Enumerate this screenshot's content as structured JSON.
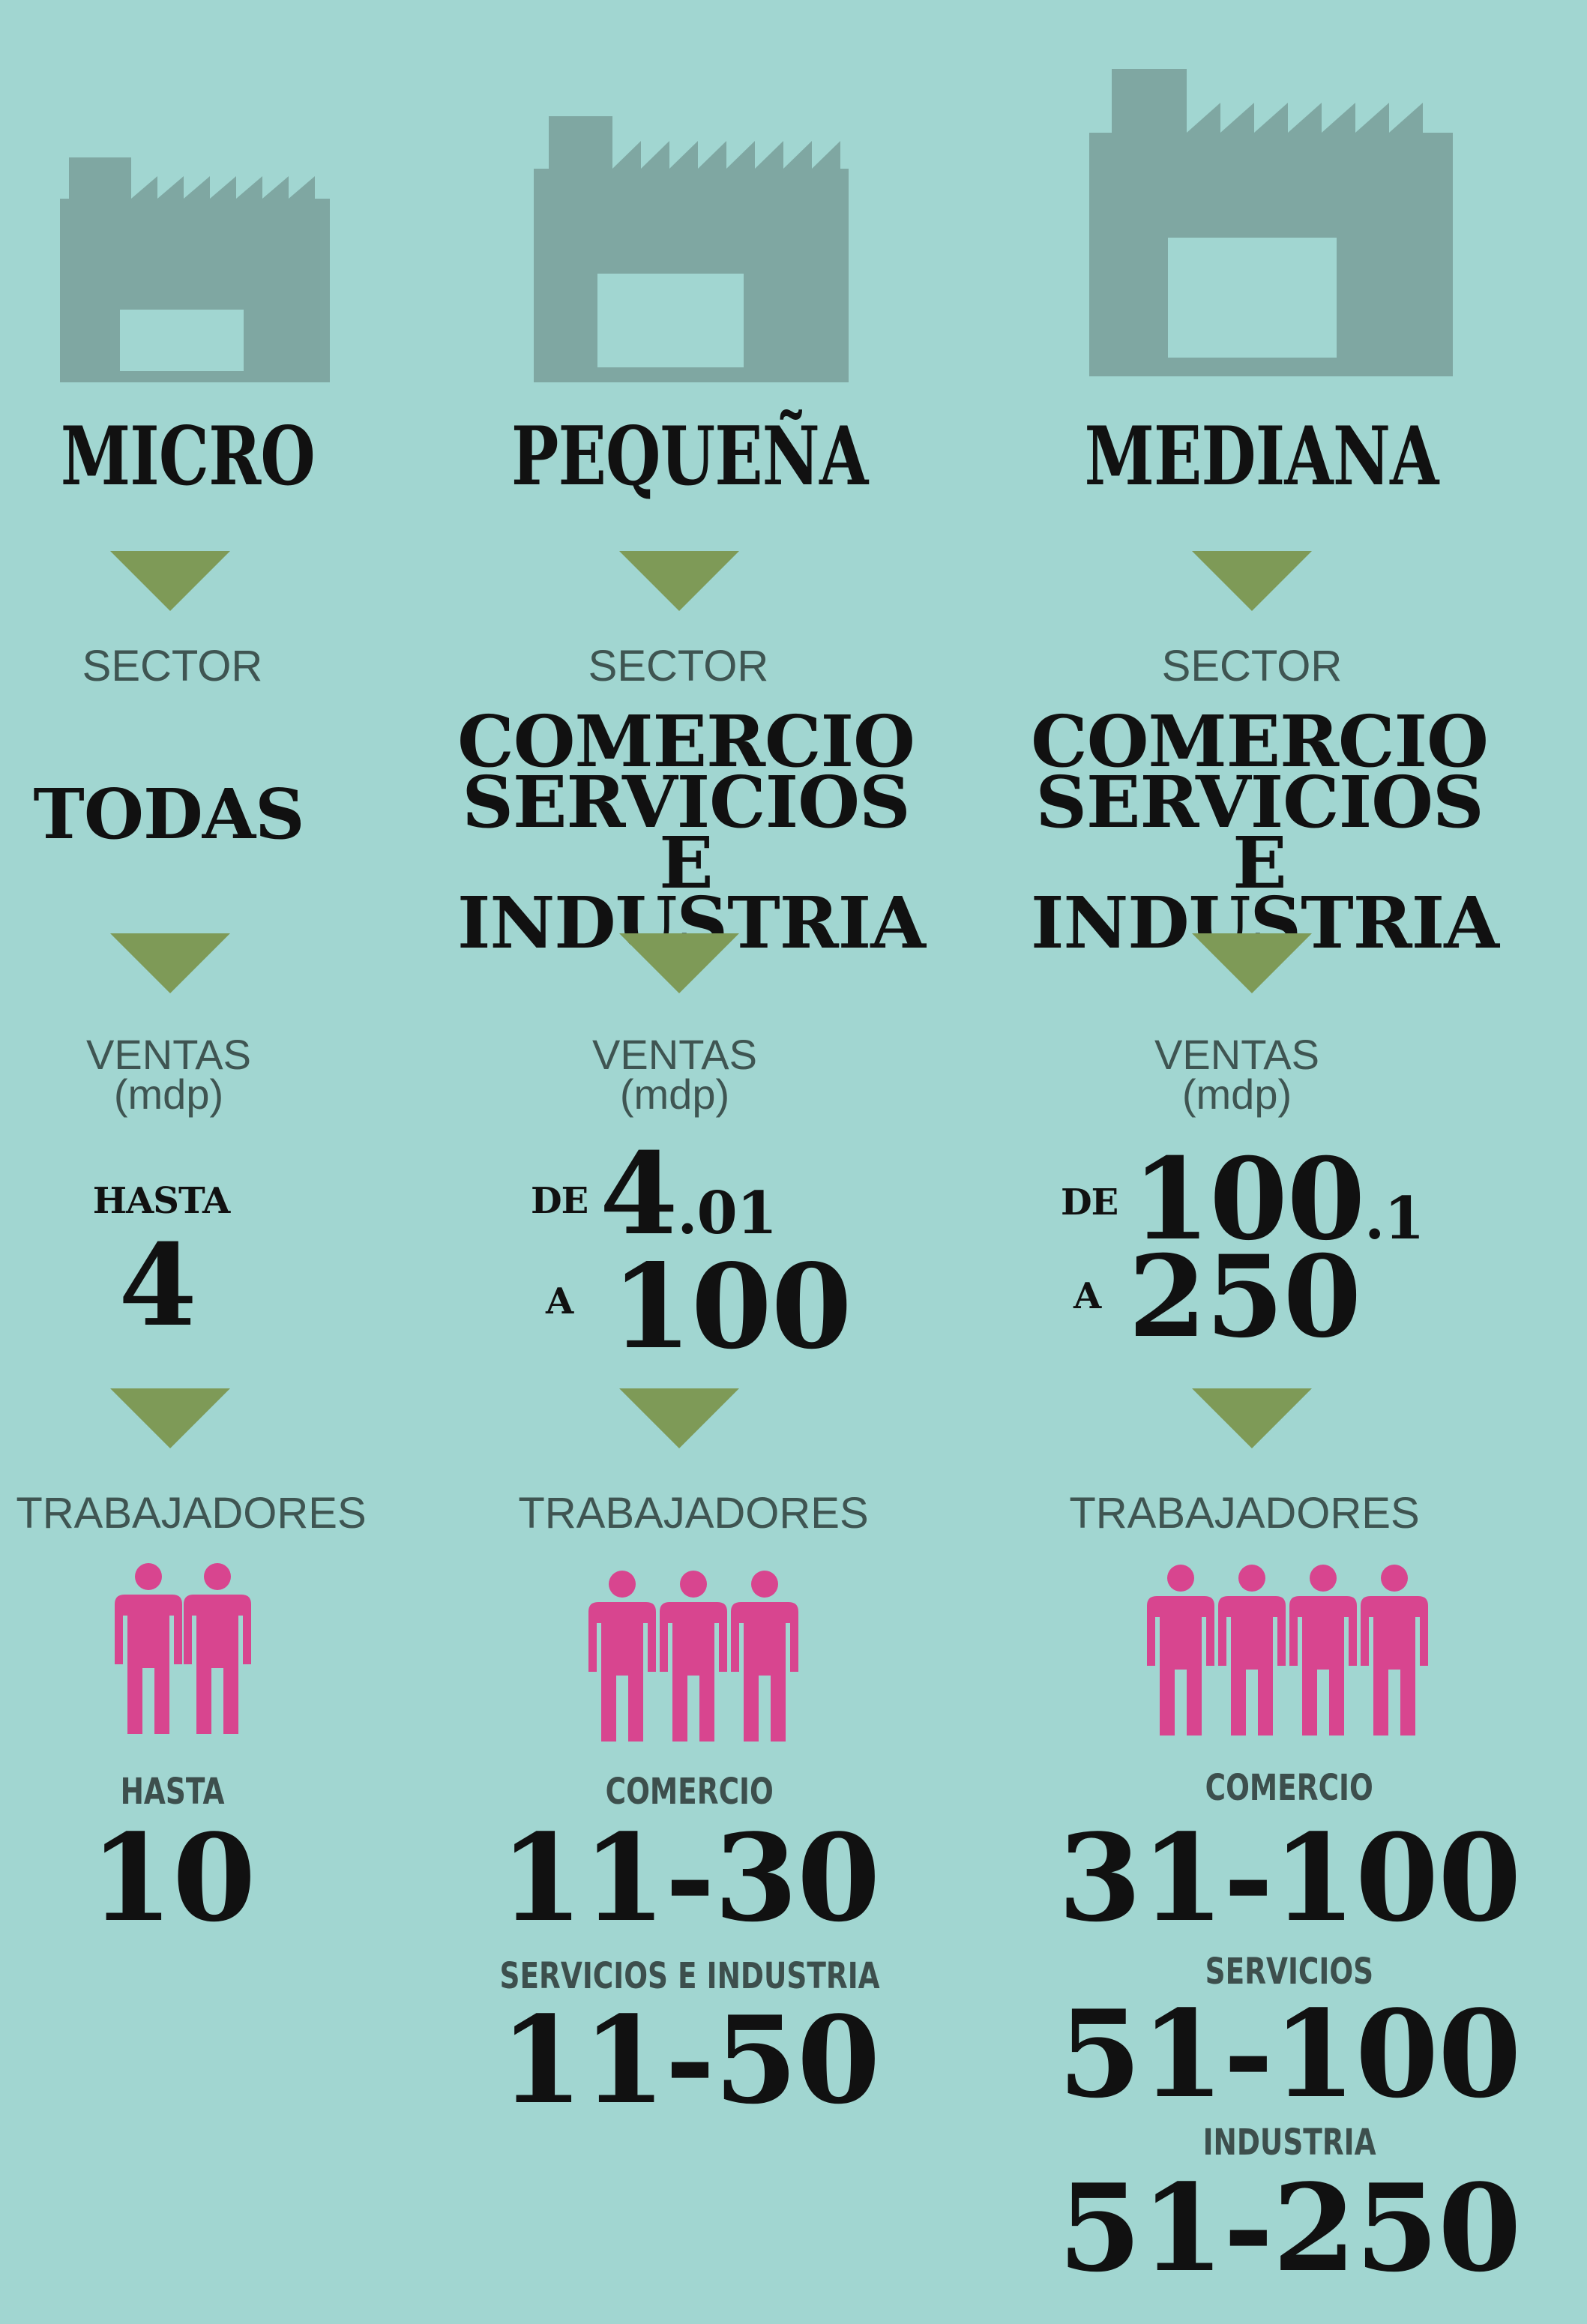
{
  "colors": {
    "background": "#a1d6d1",
    "factory": "#7fa7a2",
    "arrow": "#7e9a57",
    "person": "#d8458f",
    "label": "#3f5552",
    "value": "#111111"
  },
  "columns": [
    {
      "title": "MICRO",
      "sector_label": "SECTOR",
      "sector_value": "TODAS",
      "ventas_label": "VENTAS",
      "ventas_unit": "(mdp)",
      "ventas_prefix": "HASTA",
      "ventas_value": "4",
      "trabajadores_label": "TRABAJADORES",
      "person_count": 2,
      "worker_groups": [
        {
          "label": "HASTA",
          "value": "10"
        }
      ]
    },
    {
      "title": "PEQUEÑA",
      "sector_label": "SECTOR",
      "sector_lines": [
        "COMERCIO",
        "SERVICIOS E",
        "INDUSTRIA"
      ],
      "ventas_label": "VENTAS",
      "ventas_unit": "(mdp)",
      "ventas_de": "DE",
      "ventas_from_main": "4",
      "ventas_from_dec": ".01",
      "ventas_a": "A",
      "ventas_to": "100",
      "trabajadores_label": "TRABAJADORES",
      "person_count": 3,
      "worker_groups": [
        {
          "label": "COMERCIO",
          "value": "11-30"
        },
        {
          "label": "SERVICIOS E INDUSTRIA",
          "value": "11-50"
        }
      ]
    },
    {
      "title": "MEDIANA",
      "sector_label": "SECTOR",
      "sector_lines": [
        "COMERCIO",
        "SERVICIOS E",
        "INDUSTRIA"
      ],
      "ventas_label": "VENTAS",
      "ventas_unit": "(mdp)",
      "ventas_de": "DE",
      "ventas_from_main": "100",
      "ventas_from_dec": ".1",
      "ventas_a": "A",
      "ventas_to": "250",
      "trabajadores_label": "TRABAJADORES",
      "person_count": 4,
      "worker_groups": [
        {
          "label": "COMERCIO",
          "value": "31-100"
        },
        {
          "label": "SERVICIOS",
          "value": "51-100"
        },
        {
          "label": "INDUSTRIA",
          "value": "51-250"
        }
      ]
    }
  ]
}
